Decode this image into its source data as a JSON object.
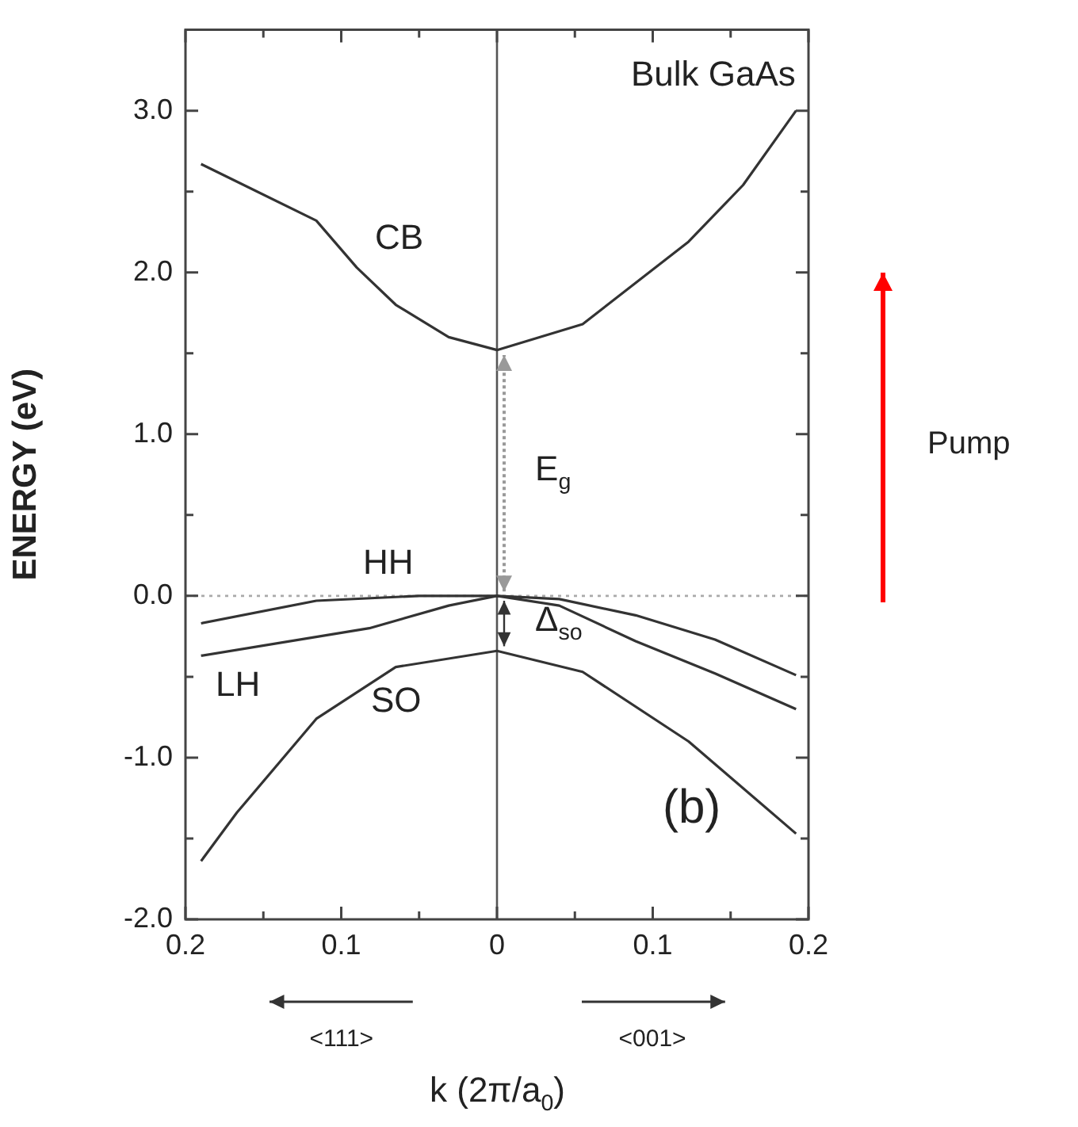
{
  "chart_data": {
    "type": "line",
    "xlabel": "k (2π/a$_{0}$)",
    "ylabel": "ENERGY (eV)",
    "xlim": [
      -0.2,
      0.2
    ],
    "xticks": [
      {
        "value": -0.2,
        "label": "0.2"
      },
      {
        "value": -0.15,
        "label": null
      },
      {
        "value": -0.1,
        "label": "0.1"
      },
      {
        "value": -0.05,
        "label": null
      },
      0,
      {
        "value": 0.05,
        "label": null
      },
      {
        "value": 0.1,
        "label": "0.1"
      },
      {
        "value": 0.15,
        "label": null
      },
      {
        "value": 0.2,
        "label": "0.2"
      }
    ],
    "ylim": [
      -2,
      3.5
    ],
    "yticks": [
      {
        "value": -2,
        "label": "-2.0"
      },
      {
        "value": -1.5,
        "label": null
      },
      {
        "value": -1,
        "label": "-1.0"
      },
      {
        "value": -0.5,
        "label": null
      },
      {
        "value": 0,
        "label": "0.0"
      },
      {
        "value": 0.5,
        "label": null
      },
      {
        "value": 1,
        "label": "1.0"
      },
      {
        "value": 1.5,
        "label": null
      },
      {
        "value": 2,
        "label": "2.0"
      },
      {
        "value": 2.5,
        "label": null
      },
      {
        "value": 3,
        "label": "3.0"
      }
    ],
    "grid": false,
    "legend": false,
    "marker": "none",
    "line_style": "solid",
    "series": [
      {
        "color": "#333333",
        "x": [
          -0.19,
          -0.116,
          -0.09,
          -0.065,
          -0.031,
          0,
          0.055,
          0.123,
          0.158,
          0.192
        ],
        "values": [
          2.67,
          2.32,
          2.03,
          1.8,
          1.6,
          1.52,
          1.68,
          2.19,
          2.54,
          3.0
        ]
      },
      {
        "color": "#333333",
        "x": [
          -0.19,
          -0.116,
          -0.05,
          0,
          0.04,
          0.089,
          0.14,
          0.192
        ],
        "values": [
          -0.17,
          -0.03,
          0,
          0,
          -0.02,
          -0.12,
          -0.27,
          -0.49
        ]
      },
      {
        "color": "#333333",
        "x": [
          -0.19,
          -0.082,
          -0.031,
          0,
          0.04,
          0.089,
          0.14,
          0.192
        ],
        "values": [
          -0.37,
          -0.2,
          -0.06,
          0,
          -0.06,
          -0.28,
          -0.48,
          -0.7
        ]
      },
      {
        "color": "#333333",
        "x": [
          -0.19,
          -0.167,
          -0.116,
          -0.065,
          0,
          0.055,
          0.123,
          0.192
        ],
        "values": [
          -1.64,
          -1.34,
          -0.76,
          -0.44,
          -0.34,
          -0.47,
          -0.9,
          -1.47
        ]
      }
    ],
    "ref_lines": [
      {
        "axis": "y",
        "value": 0,
        "color": "#aaaaaa",
        "line_style": "dotted"
      },
      {
        "axis": "x",
        "value": 0,
        "color": "#555555",
        "line_style": "solid"
      }
    ],
    "annotations": [
      "Bulk GaAs",
      "(b)",
      "<111>",
      "<001>",
      "Pump",
      "CB",
      "HH",
      "LH",
      "SO",
      {
        "text": "E$_{g}$",
        "x": 0,
        "y": 0.76
      },
      {
        "text": "Δ$_{so}$",
        "x": 0,
        "y": -0.17
      }
    ]
  }
}
